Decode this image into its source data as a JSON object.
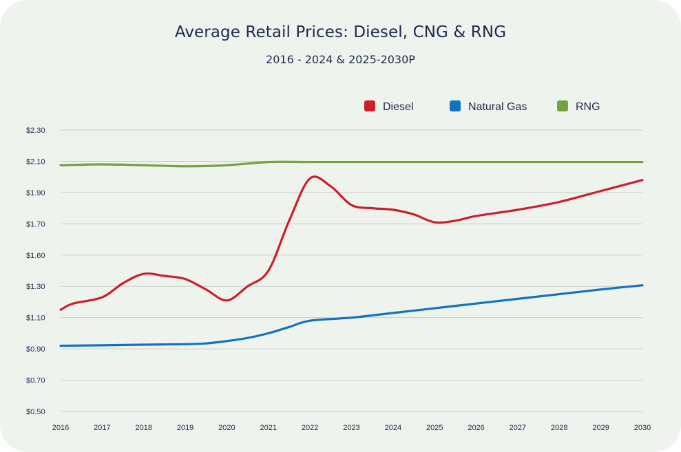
{
  "title": "Average Retail Prices: Diesel, CNG & RNG",
  "subtitle": "2016 - 2024 & 2025-2030P",
  "chart_data": {
    "type": "line",
    "title": "Average Retail Prices: Diesel, CNG & RNG",
    "subtitle": "2016 - 2024 & 2025-2030P",
    "xlabel": "",
    "ylabel": "",
    "x": [
      2016,
      2017,
      2018,
      2019,
      2020,
      2021,
      2022,
      2023,
      2024,
      2025,
      2026,
      2027,
      2028,
      2029,
      2030
    ],
    "x_tick_labels": [
      "2016",
      "2017",
      "2018",
      "2019",
      "2020",
      "2021",
      "2022",
      "2023",
      "2024",
      "2025",
      "2026",
      "2027",
      "2028",
      "2029",
      "2030"
    ],
    "y_tick_labels": [
      "$0.50",
      "$0.70",
      "$0.90",
      "$1.10",
      "$1.30",
      "$1.60",
      "$1.70",
      "$1.90",
      "$2.10",
      "$2.30"
    ],
    "grid": true,
    "legend_position": "top-right",
    "series": [
      {
        "name": "Diesel",
        "color": "#cc1f2b",
        "x": [
          2016,
          2016.3,
          2017,
          2017.5,
          2018,
          2018.5,
          2019,
          2019.5,
          2020,
          2020.5,
          2021,
          2021.5,
          2022,
          2022.5,
          2023,
          2023.5,
          2024,
          2024.5,
          2025,
          2025.5,
          2026,
          2027,
          2028,
          2029,
          2030
        ],
        "y": [
          1.15,
          1.19,
          1.23,
          1.33,
          1.42,
          1.4,
          1.37,
          1.28,
          1.21,
          1.3,
          1.45,
          1.72,
          1.99,
          1.94,
          1.82,
          1.8,
          1.79,
          1.76,
          1.71,
          1.72,
          1.75,
          1.79,
          1.84,
          1.91,
          1.98
        ]
      },
      {
        "name": "Natural Gas",
        "color": "#1273c4",
        "x": [
          2016,
          2017,
          2018,
          2019,
          2019.5,
          2020,
          2020.5,
          2021,
          2021.5,
          2022,
          2023,
          2024,
          2025,
          2026,
          2027,
          2028,
          2029,
          2030
        ],
        "y": [
          0.92,
          0.923,
          0.927,
          0.93,
          0.935,
          0.95,
          0.97,
          1.0,
          1.04,
          1.08,
          1.1,
          1.13,
          1.16,
          1.19,
          1.22,
          1.25,
          1.28,
          1.31
        ]
      },
      {
        "name": "RNG",
        "color": "#72a33f",
        "x": [
          2016,
          2017,
          2018,
          2019,
          2020,
          2021,
          2022,
          2023,
          2024,
          2025,
          2026,
          2027,
          2028,
          2029,
          2030
        ],
        "y": [
          2.075,
          2.08,
          2.075,
          2.068,
          2.075,
          2.095,
          2.095,
          2.095,
          2.095,
          2.095,
          2.095,
          2.095,
          2.095,
          2.095,
          2.095
        ]
      }
    ]
  }
}
